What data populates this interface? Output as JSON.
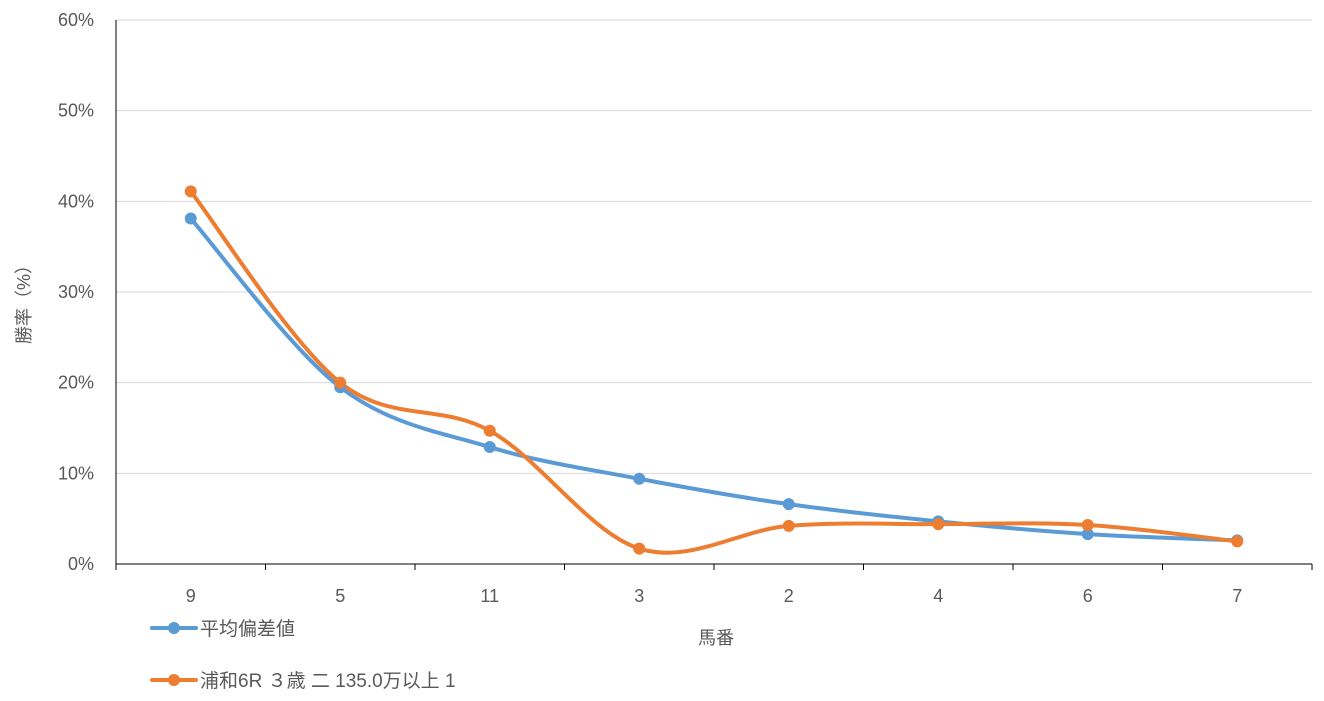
{
  "chart_data": {
    "type": "line",
    "title": "",
    "xlabel": "馬番",
    "ylabel": "勝率（%）",
    "categories": [
      "9",
      "5",
      "11",
      "3",
      "2",
      "4",
      "6",
      "7"
    ],
    "ylim": [
      0,
      60
    ],
    "yticks": [
      0,
      10,
      20,
      30,
      40,
      50,
      60
    ],
    "ytick_labels": [
      "0%",
      "10%",
      "20%",
      "30%",
      "40%",
      "50%",
      "60%"
    ],
    "grid": true,
    "smooth": true,
    "legend_position": "bottom-left",
    "series": [
      {
        "name": "平均偏差値",
        "color": "#5B9BD5",
        "values": [
          38.1,
          19.5,
          12.9,
          9.4,
          6.6,
          4.7,
          3.3,
          2.6
        ]
      },
      {
        "name": "浦和6R ３歳 二 135.0万以上 1",
        "color": "#ED7D31",
        "values": [
          41.1,
          20.0,
          14.7,
          1.7,
          4.2,
          4.4,
          4.3,
          2.5
        ]
      }
    ]
  }
}
